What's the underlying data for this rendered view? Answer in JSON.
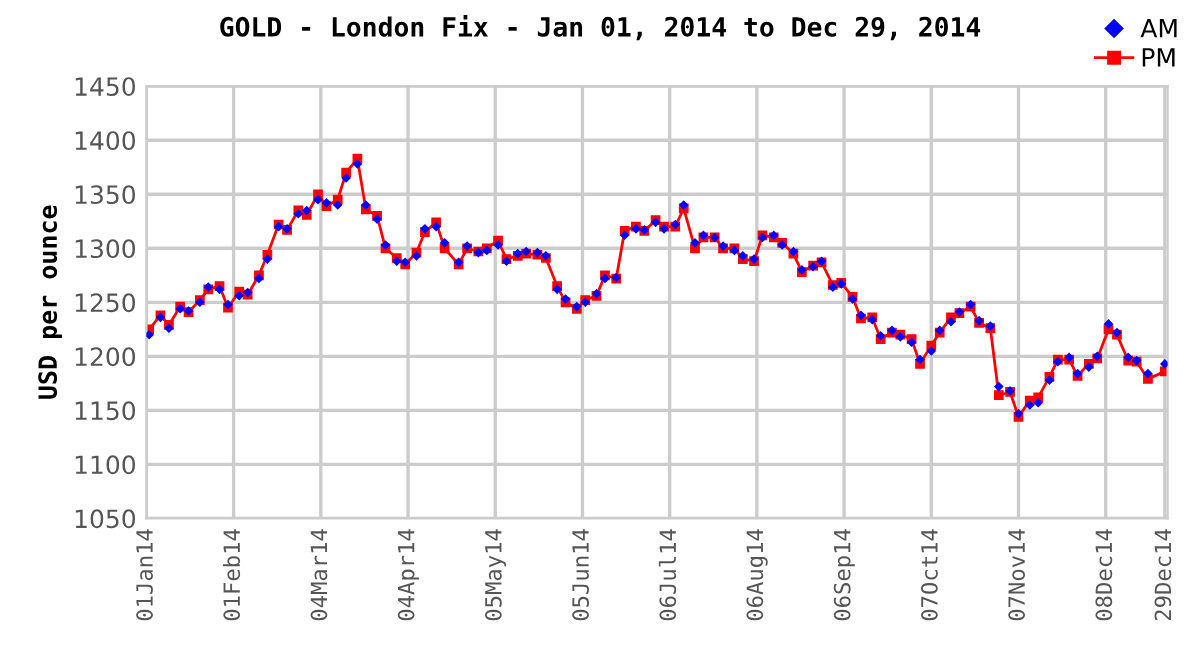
{
  "chart_data": {
    "type": "line",
    "title": "GOLD - London Fix - Jan 01, 2014 to Dec 29, 2014",
    "ylabel": "USD per ounce",
    "x": [
      "2014-01-02",
      "2014-01-06",
      "2014-01-09",
      "2014-01-13",
      "2014-01-16",
      "2014-01-20",
      "2014-01-23",
      "2014-01-27",
      "2014-01-30",
      "2014-02-03",
      "2014-02-06",
      "2014-02-10",
      "2014-02-13",
      "2014-02-17",
      "2014-02-20",
      "2014-02-24",
      "2014-02-27",
      "2014-03-03",
      "2014-03-06",
      "2014-03-10",
      "2014-03-13",
      "2014-03-17",
      "2014-03-20",
      "2014-03-24",
      "2014-03-27",
      "2014-03-31",
      "2014-04-03",
      "2014-04-07",
      "2014-04-10",
      "2014-04-14",
      "2014-04-17",
      "2014-04-22",
      "2014-04-25",
      "2014-04-29",
      "2014-05-02",
      "2014-05-06",
      "2014-05-09",
      "2014-05-13",
      "2014-05-16",
      "2014-05-20",
      "2014-05-23",
      "2014-05-27",
      "2014-05-30",
      "2014-06-03",
      "2014-06-06",
      "2014-06-10",
      "2014-06-13",
      "2014-06-17",
      "2014-06-20",
      "2014-06-24",
      "2014-06-27",
      "2014-07-01",
      "2014-07-04",
      "2014-07-08",
      "2014-07-11",
      "2014-07-15",
      "2014-07-18",
      "2014-07-22",
      "2014-07-25",
      "2014-07-29",
      "2014-08-01",
      "2014-08-05",
      "2014-08-08",
      "2014-08-12",
      "2014-08-15",
      "2014-08-19",
      "2014-08-22",
      "2014-08-26",
      "2014-08-29",
      "2014-09-02",
      "2014-09-05",
      "2014-09-09",
      "2014-09-12",
      "2014-09-16",
      "2014-09-19",
      "2014-09-23",
      "2014-09-26",
      "2014-09-30",
      "2014-10-03",
      "2014-10-07",
      "2014-10-10",
      "2014-10-14",
      "2014-10-17",
      "2014-10-21",
      "2014-10-24",
      "2014-10-28",
      "2014-10-31",
      "2014-11-04",
      "2014-11-07",
      "2014-11-11",
      "2014-11-14",
      "2014-11-18",
      "2014-11-21",
      "2014-11-25",
      "2014-11-28",
      "2014-12-02",
      "2014-12-05",
      "2014-12-09",
      "2014-12-12",
      "2014-12-16",
      "2014-12-19",
      "2014-12-23",
      "2014-12-29"
    ],
    "series": [
      {
        "name": "AM",
        "type": "scatter",
        "marker": "diamond",
        "color": "#0000ff",
        "values": [
          1220,
          1236,
          1226,
          1244,
          1242,
          1250,
          1264,
          1262,
          1248,
          1256,
          1259,
          1272,
          1290,
          1320,
          1318,
          1332,
          1335,
          1345,
          1342,
          1340,
          1365,
          1378,
          1340,
          1327,
          1303,
          1288,
          1287,
          1293,
          1318,
          1320,
          1305,
          1287,
          1302,
          1296,
          1298,
          1303,
          1288,
          1295,
          1297,
          1296,
          1293,
          1262,
          1253,
          1246,
          1250,
          1258,
          1272,
          1273,
          1312,
          1318,
          1317,
          1324,
          1318,
          1322,
          1340,
          1305,
          1312,
          1310,
          1302,
          1298,
          1293,
          1290,
          1310,
          1312,
          1303,
          1297,
          1280,
          1283,
          1288,
          1264,
          1267,
          1253,
          1238,
          1234,
          1219,
          1224,
          1218,
          1213,
          1197,
          1205,
          1224,
          1232,
          1241,
          1248,
          1233,
          1228,
          1172,
          1168,
          1147,
          1155,
          1157,
          1178,
          1195,
          1199,
          1184,
          1190,
          1200,
          1230,
          1222,
          1199,
          1196,
          1184,
          1193
        ]
      },
      {
        "name": "PM",
        "marker": "square",
        "color": "#ff0000",
        "values": [
          1225,
          1238,
          1229,
          1246,
          1241,
          1252,
          1262,
          1265,
          1245,
          1260,
          1257,
          1275,
          1294,
          1322,
          1317,
          1335,
          1331,
          1350,
          1339,
          1345,
          1370,
          1383,
          1336,
          1330,
          1300,
          1291,
          1285,
          1296,
          1315,
          1324,
          1300,
          1285,
          1300,
          1297,
          1300,
          1307,
          1290,
          1293,
          1295,
          1294,
          1291,
          1265,
          1250,
          1244,
          1252,
          1256,
          1275,
          1272,
          1316,
          1320,
          1316,
          1326,
          1320,
          1320,
          1337,
          1300,
          1310,
          1310,
          1300,
          1300,
          1290,
          1288,
          1312,
          1310,
          1305,
          1295,
          1278,
          1284,
          1287,
          1266,
          1268,
          1255,
          1235,
          1236,
          1216,
          1222,
          1220,
          1216,
          1193,
          1210,
          1222,
          1236,
          1240,
          1246,
          1231,
          1226,
          1164,
          1167,
          1144,
          1159,
          1162,
          1181,
          1197,
          1197,
          1182,
          1193,
          1198,
          1225,
          1220,
          1196,
          1195,
          1179,
          1186
        ]
      }
    ],
    "xlim": [
      "2014-01-01",
      "2014-12-30"
    ],
    "xticks": [
      {
        "value": "2014-01-01",
        "label": "01Jan14"
      },
      {
        "value": "2014-02-01",
        "label": "01Feb14"
      },
      {
        "value": "2014-03-04",
        "label": "04Mar14"
      },
      {
        "value": "2014-04-04",
        "label": "04Apr14"
      },
      {
        "value": "2014-05-05",
        "label": "05May14"
      },
      {
        "value": "2014-06-05",
        "label": "05Jun14"
      },
      {
        "value": "2014-07-06",
        "label": "06Jul14"
      },
      {
        "value": "2014-08-06",
        "label": "06Aug14"
      },
      {
        "value": "2014-09-06",
        "label": "06Sep14"
      },
      {
        "value": "2014-10-07",
        "label": "07Oct14"
      },
      {
        "value": "2014-11-07",
        "label": "07Nov14"
      },
      {
        "value": "2014-12-08",
        "label": "08Dec14"
      },
      {
        "value": "2014-12-29",
        "label": "29Dec14"
      }
    ],
    "ylim": [
      1050,
      1450
    ],
    "yticks": [
      1050,
      1100,
      1150,
      1200,
      1250,
      1300,
      1350,
      1400,
      1450
    ],
    "grid": true,
    "legend": "top right"
  }
}
